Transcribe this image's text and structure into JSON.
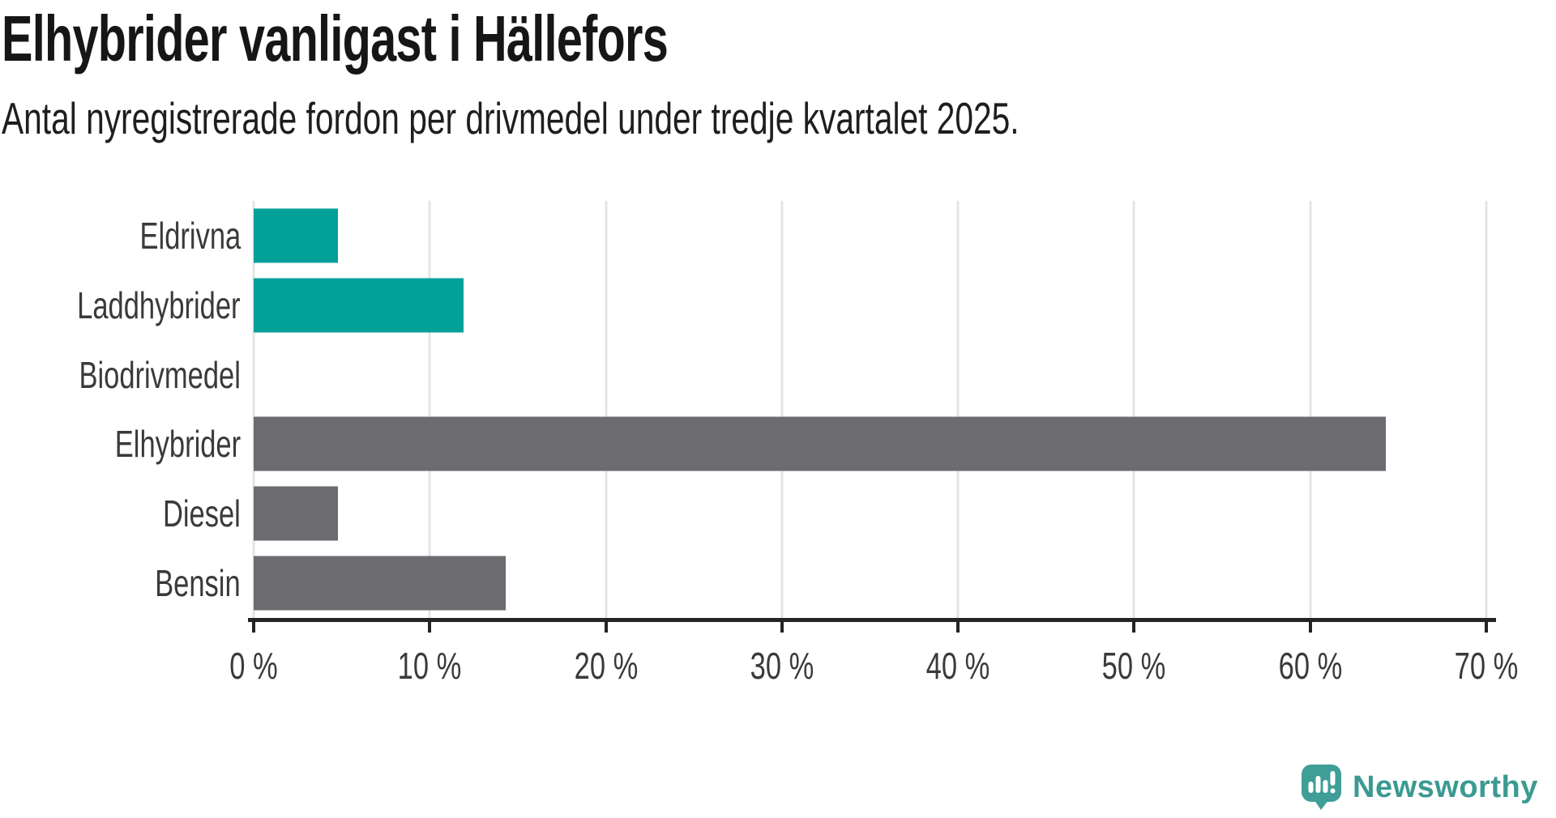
{
  "header": {
    "title": "Elhybrider vanligast i Hällefors",
    "subtitle": "Antal nyregistrerade fordon per drivmedel under tredje kvartalet 2025."
  },
  "chart_data": {
    "type": "bar",
    "orientation": "horizontal",
    "categories": [
      "Eldrivna",
      "Laddhybrider",
      "Biodrivmedel",
      "Elhybrider",
      "Diesel",
      "Bensin"
    ],
    "values": [
      4.8,
      11.9,
      0,
      64.3,
      4.8,
      14.3
    ],
    "bar_colors": [
      "#01a19a",
      "#01a19a",
      "#6b6b70",
      "#6b6b70",
      "#6b6b70",
      "#6b6b70"
    ],
    "title": "Elhybrider vanligast i Hällefors",
    "xlabel": "",
    "ylabel": "",
    "unit": "%",
    "xlim": [
      0,
      70
    ],
    "x_ticks": [
      0,
      10,
      20,
      30,
      40,
      50,
      60,
      70
    ],
    "x_tick_labels": [
      "0 %",
      "10 %",
      "20 %",
      "30 %",
      "40 %",
      "50 %",
      "60 %",
      "70 %"
    ],
    "grid": true,
    "legend": false
  },
  "colors": {
    "highlight": "#01a19a",
    "neutral": "#6b6b70",
    "gridline": "#e4e4e4",
    "axis": "#242424",
    "label_text": "#3a3a3a",
    "title_text": "#161616",
    "logo_icon": "#3f9e98",
    "logo_text": "#3b9a91"
  },
  "branding": {
    "logo_text": "Newsworthy",
    "logo_icon": "bar-chart-speech-bubble-icon"
  }
}
